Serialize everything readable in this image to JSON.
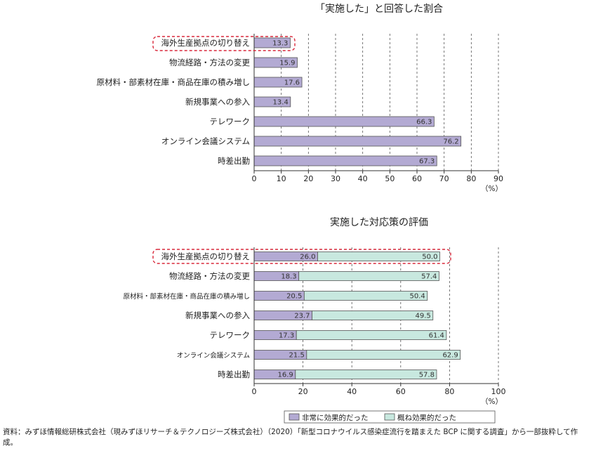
{
  "colors": {
    "purple": "#b3aad3",
    "green": "#c8e8df",
    "barStroke": "#555555",
    "highlight": "#d9293b",
    "axis": "#333333",
    "grid": "#555555"
  },
  "chart_data": [
    {
      "type": "bar",
      "orientation": "horizontal",
      "title": "「実施した」と回答した割合",
      "categories": [
        "海外生産拠点の切り替え",
        "物流経路・方法の変更",
        "原材料・部素材在庫・商品在庫の積み増し",
        "新規事業への参入",
        "テレワーク",
        "オンライン会議システム",
        "時差出勤"
      ],
      "values": [
        13.3,
        15.9,
        17.6,
        13.4,
        66.3,
        76.2,
        67.3
      ],
      "value_labels": [
        "13.3",
        "15.9",
        "17.6",
        "13.4",
        "66.3",
        "76.2",
        "67.3"
      ],
      "xlim": [
        0,
        90
      ],
      "xticks": [
        0,
        10,
        20,
        30,
        40,
        50,
        60,
        70,
        80,
        90
      ],
      "xtick_labels": [
        "0",
        "10",
        "20",
        "30",
        "40",
        "50",
        "60",
        "70",
        "80",
        "90"
      ],
      "unit": "（%）",
      "highlighted_category": "海外生産拠点の切り替え"
    },
    {
      "type": "bar",
      "orientation": "horizontal",
      "stacked": true,
      "title": "実施した対応策の評価",
      "categories": [
        "海外生産拠点の切り替え",
        "物流経路・方法の変更",
        "原材料・部素材在庫・商品在庫の積み増し",
        "新規事業への参入",
        "テレワーク",
        "オンライン会議システム",
        "時差出勤"
      ],
      "series": [
        {
          "name": "非常に効果的だった",
          "values": [
            26.0,
            18.3,
            20.5,
            23.7,
            17.3,
            21.5,
            16.9
          ],
          "value_labels": [
            "26.0",
            "18.3",
            "20.5",
            "23.7",
            "17.3",
            "21.5",
            "16.9"
          ]
        },
        {
          "name": "概ね効果的だった",
          "values": [
            50.0,
            57.4,
            50.4,
            49.5,
            61.4,
            62.9,
            57.8
          ],
          "value_labels": [
            "50.0",
            "57.4",
            "50.4",
            "49.5",
            "61.4",
            "62.9",
            "57.8"
          ]
        }
      ],
      "xlim": [
        0,
        100
      ],
      "xticks": [
        0,
        20,
        40,
        60,
        80,
        100
      ],
      "xtick_labels": [
        "0",
        "20",
        "40",
        "60",
        "80",
        "100"
      ],
      "unit": "（%）",
      "highlighted_category": "海外生産拠点の切り替え"
    }
  ],
  "source_note": "資料：みずほ情報総研株式会社（現みずほリサーチ＆テクノロジーズ株式会社）（2020）「新型コロナウイルス感染症流行を踏まえた BCP に関する調査」から一部抜粋して作成。"
}
